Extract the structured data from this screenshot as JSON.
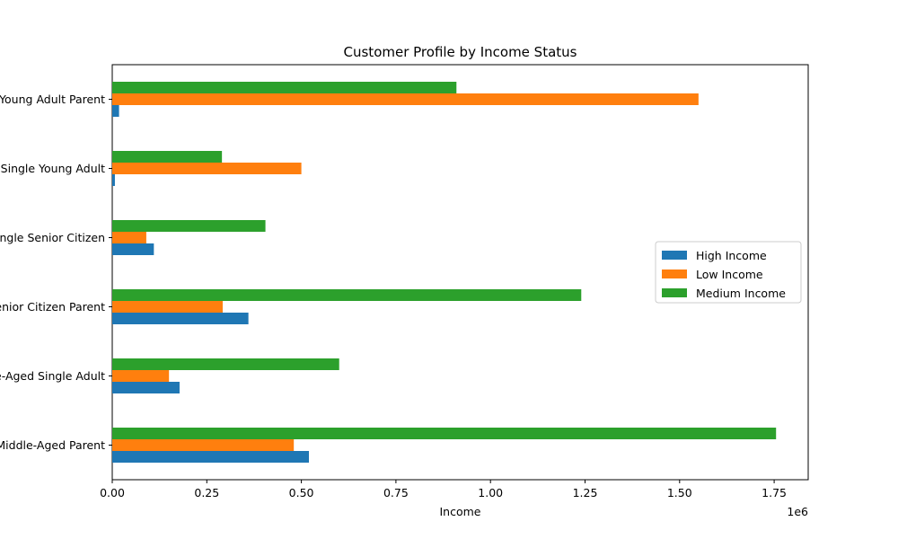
{
  "chart_data": {
    "type": "bar",
    "orientation": "horizontal",
    "title": "Customer Profile by Income Status",
    "xlabel": "Income",
    "ylabel": "",
    "x_scale_label": "1e6",
    "xlim": [
      0,
      1840000
    ],
    "x_ticks": [
      0,
      250000,
      500000,
      750000,
      1000000,
      1250000,
      1500000,
      1750000
    ],
    "x_tick_labels": [
      "0.00",
      "0.25",
      "0.50",
      "0.75",
      "1.00",
      "1.25",
      "1.50",
      "1.75"
    ],
    "categories": [
      "Middle-Aged Parent",
      "Middle-Aged Single Adult",
      "Senior Citizen Parent",
      "Single Senior Citizen",
      "Single Young Adult",
      "Young Adult Parent"
    ],
    "series": [
      {
        "name": "High Income",
        "color": "#1f77b4",
        "values": [
          520000,
          178000,
          360000,
          110000,
          7000,
          18000
        ]
      },
      {
        "name": "Low Income",
        "color": "#ff7f0e",
        "values": [
          480000,
          150000,
          292000,
          90000,
          500000,
          1550000
        ]
      },
      {
        "name": "Medium Income",
        "color": "#2ca02c",
        "values": [
          1755000,
          600000,
          1240000,
          405000,
          290000,
          910000
        ]
      }
    ],
    "legend_position": "center-right",
    "grid": false
  }
}
